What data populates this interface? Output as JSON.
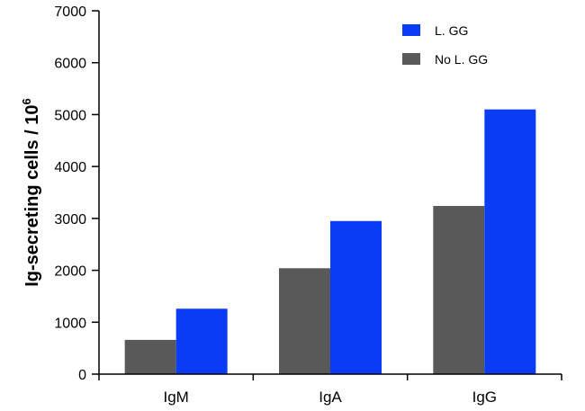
{
  "chart_data": {
    "type": "bar",
    "categories": [
      "IgM",
      "IgA",
      "IgG"
    ],
    "series": [
      {
        "name": "No L. GG",
        "color": "#595959",
        "values": [
          660,
          2040,
          3240
        ]
      },
      {
        "name": "L. GG",
        "color": "#0a3cf5",
        "values": [
          1260,
          2950,
          5100
        ]
      }
    ],
    "legend_order": [
      1,
      0
    ],
    "legend_position": "top-right",
    "ylabel": {
      "main": "Ig-secreting cells / 10",
      "superscript": "6"
    },
    "xlabel": "",
    "ylim": [
      0,
      7000
    ],
    "yticks": [
      0,
      1000,
      2000,
      3000,
      4000,
      5000,
      6000,
      7000
    ],
    "grid": false
  }
}
